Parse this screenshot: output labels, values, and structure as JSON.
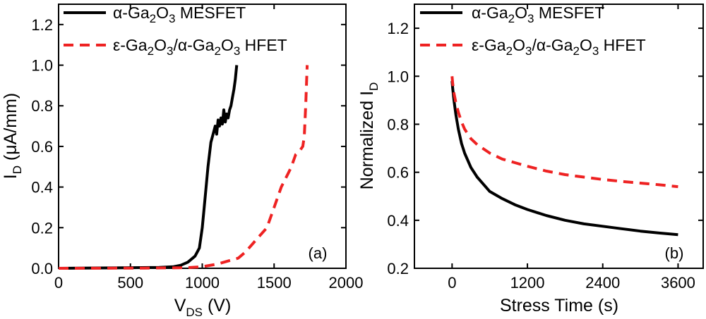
{
  "chart_data": [
    {
      "type": "line",
      "panel_label": "(a)",
      "xlabel": {
        "main": "V",
        "sub": "DS",
        "unit": " (V)"
      },
      "ylabel": {
        "main": "I",
        "sub": "D",
        "unit": " (μA/mm)"
      },
      "xlim": [
        0,
        2000
      ],
      "ylim": [
        0,
        1.3
      ],
      "xticks": [
        0,
        500,
        1000,
        1500,
        2000
      ],
      "yticks": [
        0.0,
        0.2,
        0.4,
        0.6,
        0.8,
        1.0,
        1.2
      ],
      "xtick_labels": [
        "0",
        "500",
        "1000",
        "1500",
        "2000"
      ],
      "ytick_labels": [
        "0.0",
        "0.2",
        "0.4",
        "0.6",
        "0.8",
        "1.0",
        "1.2"
      ],
      "series": [
        {
          "name": "α-Ga₂O₃ MESFET",
          "legend": {
            "pre": "α-Ga",
            "s1": "2",
            "mid": "O",
            "s2": "3",
            "post": " MESFET"
          },
          "style": "solid",
          "color": "#000000",
          "x": [
            0,
            400,
            700,
            800,
            850,
            900,
            950,
            980,
            1000,
            1020,
            1040,
            1060,
            1075,
            1090,
            1100,
            1110,
            1120,
            1130,
            1140,
            1150,
            1160,
            1170,
            1180,
            1190,
            1200,
            1210,
            1220,
            1230,
            1240
          ],
          "y": [
            0.0,
            0.002,
            0.004,
            0.008,
            0.015,
            0.03,
            0.06,
            0.1,
            0.2,
            0.35,
            0.5,
            0.62,
            0.66,
            0.7,
            0.66,
            0.73,
            0.7,
            0.74,
            0.71,
            0.78,
            0.72,
            0.76,
            0.74,
            0.78,
            0.8,
            0.84,
            0.88,
            0.93,
            1.0
          ]
        },
        {
          "name": "ε-Ga₂O₃/α-Ga₂O₃ HFET",
          "legend": {
            "pre": "ε-Ga",
            "s1": "2",
            "mid": "O",
            "s2": "3",
            "mid2": "/α-Ga",
            "s3": "2",
            "mid3": "O",
            "s4": "3",
            "post": " HFET"
          },
          "style": "dashed",
          "color": "#ee2222",
          "x": [
            0,
            600,
            900,
            1000,
            1100,
            1200,
            1250,
            1300,
            1350,
            1400,
            1450,
            1500,
            1550,
            1600,
            1620,
            1650,
            1680,
            1700,
            1710,
            1720,
            1730
          ],
          "y": [
            0.0,
            0.001,
            0.003,
            0.008,
            0.02,
            0.04,
            0.05,
            0.08,
            0.12,
            0.16,
            0.2,
            0.3,
            0.4,
            0.47,
            0.5,
            0.56,
            0.58,
            0.6,
            0.65,
            0.8,
            1.0
          ]
        }
      ]
    },
    {
      "type": "line",
      "panel_label": "(b)",
      "xlabel": {
        "main": "Stress Time (s)"
      },
      "ylabel": {
        "main": "Normalized I",
        "sub": "D"
      },
      "xlim": [
        -600,
        4000
      ],
      "ylim": [
        0.2,
        1.3
      ],
      "xticks": [
        0,
        1200,
        2400,
        3600
      ],
      "yticks": [
        0.2,
        0.4,
        0.6,
        0.8,
        1.0,
        1.2
      ],
      "xtick_labels": [
        "0",
        "1200",
        "2400",
        "3600"
      ],
      "ytick_labels": [
        "0.2",
        "0.4",
        "0.6",
        "0.8",
        "1.0",
        "1.2"
      ],
      "series": [
        {
          "name": "α-Ga₂O₃ MESFET",
          "legend": {
            "pre": "α-Ga",
            "s1": "2",
            "mid": "O",
            "s2": "3",
            "post": " MESFET"
          },
          "style": "solid",
          "color": "#000000",
          "x": [
            0,
            10,
            30,
            60,
            100,
            150,
            200,
            300,
            400,
            600,
            800,
            1000,
            1200,
            1500,
            1800,
            2100,
            2400,
            2700,
            3000,
            3300,
            3600
          ],
          "y": [
            0.98,
            0.95,
            0.9,
            0.84,
            0.78,
            0.72,
            0.68,
            0.62,
            0.58,
            0.52,
            0.49,
            0.465,
            0.445,
            0.42,
            0.4,
            0.385,
            0.375,
            0.365,
            0.355,
            0.347,
            0.34
          ]
        },
        {
          "name": "ε-Ga₂O₃/α-Ga₂O₃ HFET",
          "legend": {
            "pre": "ε-Ga",
            "s1": "2",
            "mid": "O",
            "s2": "3",
            "mid2": "/α-Ga",
            "s3": "2",
            "mid3": "O",
            "s4": "3",
            "post": " HFET"
          },
          "style": "dashed",
          "color": "#ee2222",
          "x": [
            0,
            10,
            30,
            60,
            100,
            150,
            200,
            300,
            400,
            600,
            800,
            1000,
            1200,
            1500,
            1800,
            2100,
            2400,
            2700,
            3000,
            3300,
            3600
          ],
          "y": [
            1.0,
            0.97,
            0.93,
            0.89,
            0.85,
            0.81,
            0.78,
            0.74,
            0.715,
            0.68,
            0.655,
            0.64,
            0.625,
            0.605,
            0.59,
            0.58,
            0.57,
            0.562,
            0.555,
            0.548,
            0.54
          ]
        }
      ]
    }
  ]
}
